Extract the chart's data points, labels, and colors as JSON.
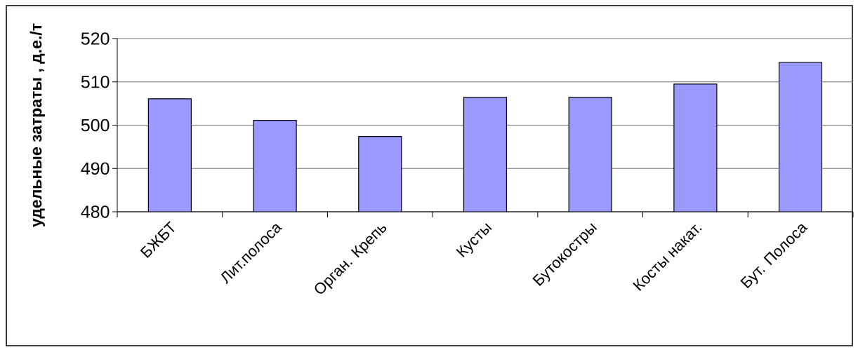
{
  "chart_data": {
    "type": "bar",
    "ylabel": "удельные затраты , д.е./т",
    "categories": [
      "БЖБТ",
      "Лит.полоса",
      "Орган. Крепь",
      "Кусты",
      "Бутокостры",
      "Косты накат.",
      "Бут. Полоса"
    ],
    "values": [
      506.1,
      501.1,
      497.4,
      506.4,
      506.4,
      509.5,
      514.5
    ],
    "color": "#9999ff",
    "ylim": [
      480,
      520
    ],
    "yticks": [
      480,
      490,
      500,
      510,
      520
    ],
    "grid": "y"
  }
}
